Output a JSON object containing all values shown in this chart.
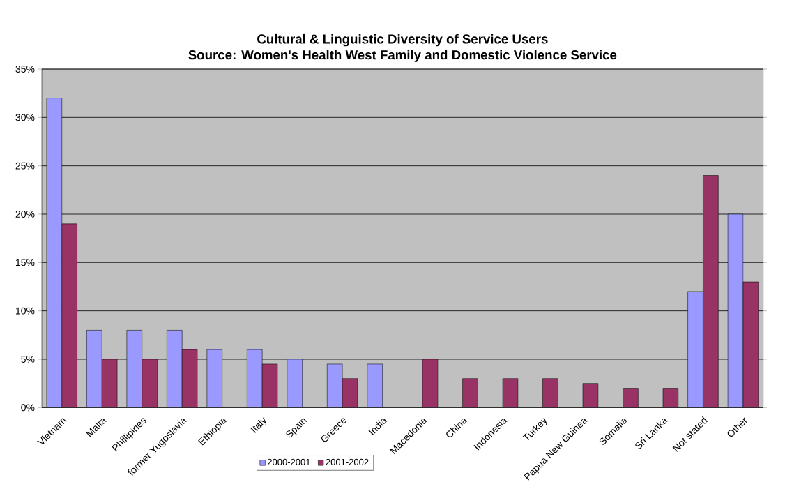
{
  "chart_data": {
    "type": "bar",
    "title": "Cultural & Linguistic Diversity of Service Users",
    "subtitle": "Source: Women's Health West Family and Domestic Violence Service",
    "categories": [
      "Vietnam",
      "Malta",
      "Phillipines",
      "former Yugoslavia",
      "Ethiopia",
      "Italy",
      "Spain",
      "Greece",
      "India",
      "Macedonia",
      "China",
      "Indonesia",
      "Turkey",
      "Papua New Guinea",
      "Somalia",
      "Sri Lanka",
      "Not stated",
      "Other"
    ],
    "series": [
      {
        "name": "2000-2001",
        "color": "#9999ff",
        "values": [
          32,
          8,
          8,
          8,
          6,
          6,
          5,
          4.5,
          4.5,
          null,
          null,
          null,
          null,
          null,
          null,
          null,
          12,
          20
        ]
      },
      {
        "name": "2001-2002",
        "color": "#993366",
        "values": [
          19,
          5,
          5,
          6,
          null,
          4.5,
          null,
          3,
          null,
          5,
          3,
          3,
          3,
          2.5,
          2,
          2,
          24,
          13
        ]
      }
    ],
    "ylim": [
      0,
      35
    ],
    "yticks": [
      {
        "value": 0,
        "label": "0%"
      },
      {
        "value": 5,
        "label": "5%"
      },
      {
        "value": 10,
        "label": "10%"
      },
      {
        "value": 15,
        "label": "15%"
      },
      {
        "value": 20,
        "label": "20%"
      },
      {
        "value": 25,
        "label": "25%"
      },
      {
        "value": 30,
        "label": "30%"
      },
      {
        "value": 35,
        "label": "35%"
      }
    ],
    "grid": "y",
    "legend": "bottom"
  }
}
